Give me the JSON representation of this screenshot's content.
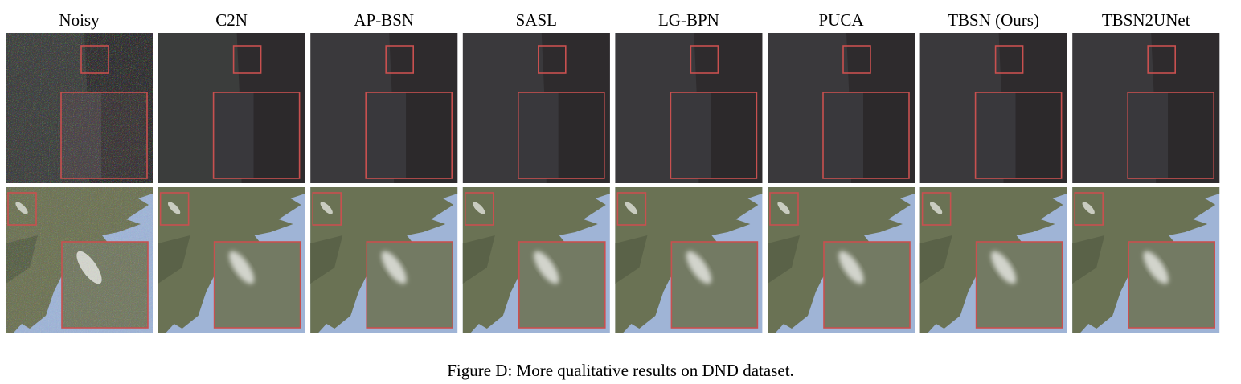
{
  "figure": {
    "columns": [
      "Noisy",
      "C2N",
      "AP-BSN",
      "SASL",
      "LG-BPN",
      "PUCA",
      "TBSN (Ours)",
      "TBSN2UNet"
    ],
    "caption": "Figure D: More qualitative results on DND dataset."
  }
}
